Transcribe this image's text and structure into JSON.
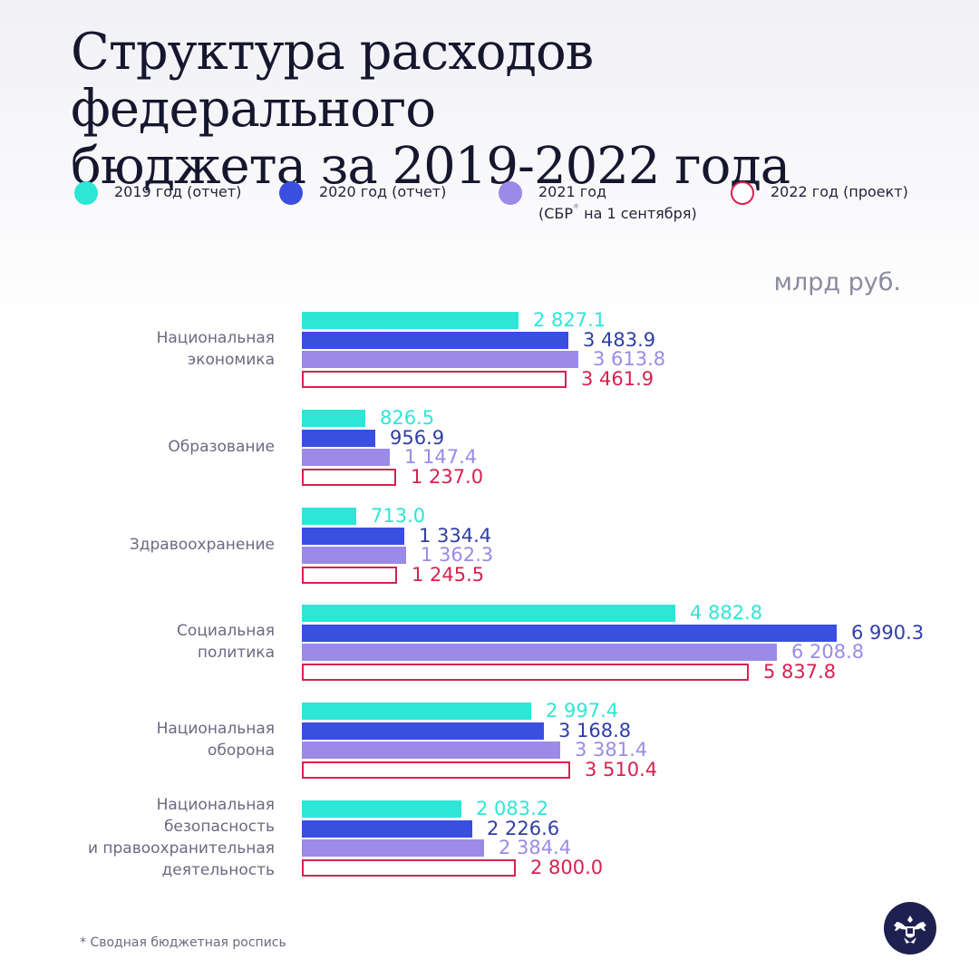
{
  "title_line1": "Структура расходов федерального",
  "title_line2": "бюджета за 2019-2022 года",
  "legend": [
    {
      "label": "2019 год (отчет)",
      "color": "#2ee6d6",
      "fill": true
    },
    {
      "label": "2020 год (отчет)",
      "color": "#3a4ee0",
      "fill": true
    },
    {
      "label": "2021 год",
      "label2_pre": "(СБР",
      "label2_sup": "*",
      "label2_post": " на 1 сентября)",
      "color": "#9b8ae8",
      "fill": true
    },
    {
      "label": "2022 год (проект)",
      "color": "#d62250",
      "fill": false
    }
  ],
  "unit": "млрд руб.",
  "footnote": "* Сводная бюджетная роспись",
  "value_colors": [
    "#2ee6d6",
    "#2f3ea8",
    "#9b8ae8",
    "#d62250"
  ],
  "chart_data": {
    "type": "bar",
    "orientation": "horizontal",
    "categories": [
      [
        "Национальная",
        "экономика"
      ],
      [
        "Образование"
      ],
      [
        "Здравоохранение"
      ],
      [
        "Социальная",
        "политика"
      ],
      [
        "Национальная",
        "оборона"
      ],
      [
        "Национальная",
        "безопасность",
        "и правоохранительная",
        "деятельность"
      ]
    ],
    "series": [
      {
        "name": "2019 год (отчет)",
        "values": [
          2827.1,
          826.5,
          713.0,
          4882.8,
          2997.4,
          2083.2
        ],
        "labels": [
          "2 827.1",
          "826.5",
          "713.0",
          "4 882.8",
          "2 997.4",
          "2 083.2"
        ]
      },
      {
        "name": "2020 год (отчет)",
        "values": [
          3483.9,
          956.9,
          1334.4,
          6990.3,
          3168.8,
          2226.6
        ],
        "labels": [
          "3 483.9",
          "956.9",
          "1 334.4",
          "6 990.3",
          "3 168.8",
          "2 226.6"
        ]
      },
      {
        "name": "2021 год (СБР на 1 сентября)",
        "values": [
          3613.8,
          1147.4,
          1362.3,
          6208.8,
          3381.4,
          2384.4
        ],
        "labels": [
          "3 613.8",
          "1 147.4",
          "1 362.3",
          "6 208.8",
          "3 381.4",
          "2 384.4"
        ]
      },
      {
        "name": "2022 год (проект)",
        "values": [
          3461.9,
          1237.0,
          1245.5,
          5837.8,
          3510.4,
          2800.0
        ],
        "labels": [
          "3 461.9",
          "1 237.0",
          "1 245.5",
          "5 837.8",
          "3 510.4",
          "2 800.0"
        ]
      }
    ],
    "xlim": [
      0,
      6990.3
    ],
    "grid": false,
    "legend_position": "top"
  }
}
